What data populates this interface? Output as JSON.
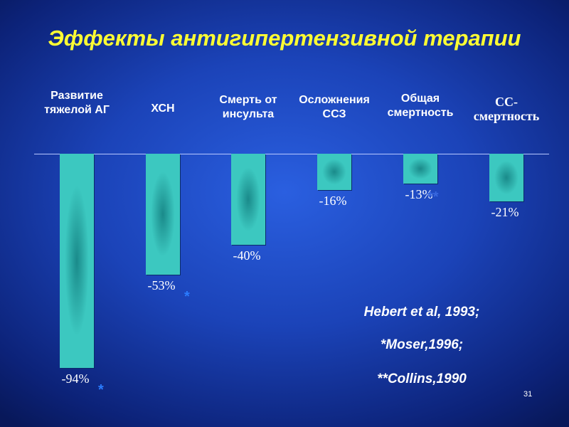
{
  "chart_data": {
    "type": "bar",
    "title": "Эффекты антигипертензивной терапии",
    "categories": [
      "Развитие\nтяжелой АГ",
      "ХСН",
      "Смерть от\nинсульта",
      "Осложнения\nССЗ",
      "Общая\nсмертность",
      "СС-\nсмертность"
    ],
    "values": [
      -94,
      -53,
      -40,
      -16,
      -13,
      -21
    ],
    "value_labels": [
      "-94%",
      "-53%",
      "-40%",
      "-16%",
      "-13%",
      "-21%"
    ],
    "markers": [
      "*",
      "*",
      null,
      null,
      "**",
      null
    ],
    "color": "#3cc8c0",
    "notes": [
      "Hebert et al, 1993;",
      "*Moser,1996;",
      "**Collins,1990"
    ]
  },
  "slide_number": "31"
}
